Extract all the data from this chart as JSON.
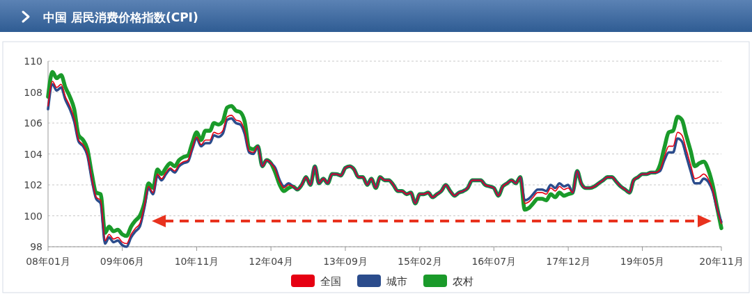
{
  "chart_data": {
    "type": "line",
    "title": "中国 居民消费价格指数(CPI)",
    "x": [
      "2008-01",
      "2008-02",
      "2008-03",
      "2008-04",
      "2008-05",
      "2008-06",
      "2008-07",
      "2008-08",
      "2008-09",
      "2008-10",
      "2008-11",
      "2008-12",
      "2009-01",
      "2009-02",
      "2009-03",
      "2009-04",
      "2009-05",
      "2009-06",
      "2009-07",
      "2009-08",
      "2009-09",
      "2009-10",
      "2009-11",
      "2009-12",
      "2010-01",
      "2010-02",
      "2010-03",
      "2010-04",
      "2010-05",
      "2010-06",
      "2010-07",
      "2010-08",
      "2010-09",
      "2010-10",
      "2010-11",
      "2010-12",
      "2011-01",
      "2011-02",
      "2011-03",
      "2011-04",
      "2011-05",
      "2011-06",
      "2011-07",
      "2011-08",
      "2011-09",
      "2011-10",
      "2011-11",
      "2011-12",
      "2012-01",
      "2012-02",
      "2012-03",
      "2012-04",
      "2012-05",
      "2012-06",
      "2012-07",
      "2012-08",
      "2012-09",
      "2012-10",
      "2012-11",
      "2012-12",
      "2013-01",
      "2013-02",
      "2013-03",
      "2013-04",
      "2013-05",
      "2013-06",
      "2013-07",
      "2013-08",
      "2013-09",
      "2013-10",
      "2013-11",
      "2013-12",
      "2014-01",
      "2014-02",
      "2014-03",
      "2014-04",
      "2014-05",
      "2014-06",
      "2014-07",
      "2014-08",
      "2014-09",
      "2014-10",
      "2014-11",
      "2014-12",
      "2015-01",
      "2015-02",
      "2015-03",
      "2015-04",
      "2015-05",
      "2015-06",
      "2015-07",
      "2015-08",
      "2015-09",
      "2015-10",
      "2015-11",
      "2015-12",
      "2016-01",
      "2016-02",
      "2016-03",
      "2016-04",
      "2016-05",
      "2016-06",
      "2016-07",
      "2016-08",
      "2016-09",
      "2016-10",
      "2016-11",
      "2016-12",
      "2017-01",
      "2017-02",
      "2017-03",
      "2017-04",
      "2017-05",
      "2017-06",
      "2017-07",
      "2017-08",
      "2017-09",
      "2017-10",
      "2017-11",
      "2017-12",
      "2018-01",
      "2018-02",
      "2018-03",
      "2018-04",
      "2018-05",
      "2018-06",
      "2018-07",
      "2018-08",
      "2018-09",
      "2018-10",
      "2018-11",
      "2018-12",
      "2019-01",
      "2019-02",
      "2019-03",
      "2019-04",
      "2019-05",
      "2019-06",
      "2019-07",
      "2019-08",
      "2019-09",
      "2019-10",
      "2019-11",
      "2019-12",
      "2020-01",
      "2020-02",
      "2020-03",
      "2020-04",
      "2020-05",
      "2020-06",
      "2020-07",
      "2020-08",
      "2020-09",
      "2020-10",
      "2020-11"
    ],
    "series": [
      {
        "name": "全国",
        "color": "#e60012",
        "values": [
          107.1,
          108.7,
          108.3,
          108.5,
          107.7,
          107.1,
          106.3,
          104.9,
          104.6,
          104.0,
          102.4,
          101.2,
          101.0,
          98.4,
          98.8,
          98.5,
          98.6,
          98.3,
          98.2,
          98.8,
          99.2,
          99.5,
          100.6,
          101.9,
          101.5,
          102.7,
          102.4,
          102.8,
          103.1,
          102.9,
          103.3,
          103.5,
          103.6,
          104.4,
          105.1,
          104.6,
          104.9,
          104.9,
          105.4,
          105.3,
          105.5,
          106.4,
          106.5,
          106.2,
          106.1,
          105.5,
          104.2,
          104.1,
          104.5,
          103.2,
          103.6,
          103.4,
          103.0,
          102.2,
          101.8,
          102.0,
          101.9,
          101.7,
          102.0,
          102.5,
          102.0,
          103.2,
          102.1,
          102.4,
          102.1,
          102.7,
          102.7,
          102.6,
          103.1,
          103.2,
          103.0,
          102.5,
          102.5,
          102.0,
          102.4,
          101.8,
          102.5,
          102.3,
          102.3,
          102.0,
          101.6,
          101.6,
          101.4,
          101.5,
          100.8,
          101.4,
          101.4,
          101.5,
          101.2,
          101.4,
          101.6,
          102.0,
          101.6,
          101.3,
          101.5,
          101.6,
          101.8,
          102.3,
          102.3,
          102.3,
          102.0,
          101.9,
          101.8,
          101.3,
          101.9,
          102.1,
          102.3,
          102.1,
          102.5,
          100.8,
          100.9,
          101.2,
          101.5,
          101.5,
          101.4,
          101.8,
          101.6,
          101.9,
          101.7,
          101.8,
          101.5,
          102.9,
          102.1,
          101.8,
          101.8,
          101.9,
          102.1,
          102.3,
          102.5,
          102.5,
          102.2,
          101.9,
          101.7,
          101.5,
          102.3,
          102.5,
          102.7,
          102.7,
          102.8,
          102.8,
          103.0,
          103.8,
          104.5,
          104.5,
          105.4,
          105.2,
          104.3,
          103.3,
          102.4,
          102.5,
          102.7,
          102.4,
          101.7,
          100.5,
          99.5
        ]
      },
      {
        "name": "城市",
        "color": "#2b4c8c",
        "values": [
          106.9,
          108.5,
          108.1,
          108.3,
          107.5,
          106.9,
          106.1,
          104.8,
          104.5,
          103.9,
          102.3,
          101.1,
          100.8,
          98.2,
          98.6,
          98.3,
          98.4,
          98.1,
          98.0,
          98.6,
          99.0,
          99.3,
          100.5,
          101.8,
          101.4,
          102.6,
          102.3,
          102.7,
          103.0,
          102.8,
          103.2,
          103.4,
          103.5,
          104.3,
          105.0,
          104.5,
          104.7,
          104.7,
          105.2,
          105.1,
          105.3,
          106.2,
          106.3,
          106.0,
          105.9,
          105.3,
          104.1,
          104.0,
          104.5,
          103.2,
          103.6,
          103.4,
          103.1,
          102.3,
          101.9,
          102.1,
          101.9,
          101.7,
          102.0,
          102.5,
          102.0,
          103.2,
          102.1,
          102.4,
          102.1,
          102.7,
          102.7,
          102.6,
          103.1,
          103.2,
          103.0,
          102.5,
          102.5,
          102.0,
          102.4,
          101.8,
          102.5,
          102.3,
          102.3,
          102.0,
          101.6,
          101.6,
          101.4,
          101.5,
          100.8,
          101.4,
          101.4,
          101.5,
          101.2,
          101.4,
          101.6,
          102.0,
          101.6,
          101.3,
          101.5,
          101.6,
          101.8,
          102.3,
          102.3,
          102.3,
          102.0,
          101.9,
          101.8,
          101.3,
          101.9,
          102.1,
          102.3,
          102.1,
          102.5,
          101.0,
          101.1,
          101.4,
          101.7,
          101.7,
          101.6,
          102.0,
          101.8,
          102.1,
          101.9,
          102.0,
          101.5,
          102.9,
          102.1,
          101.8,
          101.8,
          101.9,
          102.1,
          102.3,
          102.5,
          102.5,
          102.2,
          101.9,
          101.7,
          101.5,
          102.3,
          102.5,
          102.7,
          102.7,
          102.8,
          102.8,
          102.9,
          103.6,
          104.1,
          104.1,
          105.0,
          104.8,
          103.9,
          102.9,
          102.1,
          102.1,
          102.4,
          102.2,
          101.6,
          100.5,
          99.6
        ]
      },
      {
        "name": "农村",
        "color": "#1a9a2a",
        "values": [
          107.7,
          109.3,
          108.9,
          109.1,
          108.3,
          107.7,
          106.9,
          105.2,
          104.9,
          104.3,
          102.7,
          101.5,
          101.4,
          98.9,
          99.3,
          99.0,
          99.1,
          98.8,
          98.7,
          99.3,
          99.7,
          100.0,
          100.8,
          102.1,
          101.8,
          103.0,
          102.7,
          103.1,
          103.4,
          103.2,
          103.6,
          103.8,
          103.9,
          104.7,
          105.4,
          104.9,
          105.5,
          105.5,
          106.0,
          105.9,
          106.1,
          107.0,
          107.1,
          106.8,
          106.7,
          106.1,
          104.4,
          104.3,
          104.5,
          103.2,
          103.6,
          103.4,
          102.8,
          102.0,
          101.6,
          101.8,
          101.9,
          101.7,
          102.0,
          102.5,
          102.0,
          103.2,
          102.1,
          102.4,
          102.1,
          102.7,
          102.7,
          102.6,
          103.1,
          103.2,
          103.0,
          102.5,
          102.5,
          102.0,
          102.4,
          101.8,
          102.5,
          102.3,
          102.3,
          102.0,
          101.6,
          101.6,
          101.4,
          101.5,
          100.8,
          101.4,
          101.4,
          101.5,
          101.2,
          101.4,
          101.6,
          102.0,
          101.6,
          101.3,
          101.5,
          101.6,
          101.8,
          102.3,
          102.3,
          102.3,
          102.0,
          101.9,
          101.8,
          101.3,
          101.9,
          102.1,
          102.3,
          102.1,
          102.5,
          100.4,
          100.5,
          100.8,
          101.1,
          101.1,
          101.0,
          101.4,
          101.2,
          101.5,
          101.3,
          101.4,
          101.5,
          102.9,
          102.1,
          101.8,
          101.8,
          101.9,
          102.1,
          102.3,
          102.5,
          102.5,
          102.2,
          101.9,
          101.7,
          101.5,
          102.3,
          102.5,
          102.7,
          102.7,
          102.8,
          102.8,
          103.3,
          104.4,
          105.4,
          105.5,
          106.4,
          106.2,
          105.2,
          104.2,
          103.2,
          103.4,
          103.5,
          103.0,
          102.0,
          100.6,
          99.2
        ]
      }
    ],
    "xlim": [
      "2008-01",
      "2020-11"
    ],
    "xticks": [
      {
        "value": "2008-01",
        "label": "08年01月"
      },
      {
        "value": "2009-06",
        "label": "09年06月"
      },
      {
        "value": "2010-11",
        "label": "10年11月"
      },
      {
        "value": "2012-04",
        "label": "12年04月"
      },
      {
        "value": "2013-09",
        "label": "13年09月"
      },
      {
        "value": "2015-02",
        "label": "15年02月"
      },
      {
        "value": "2016-07",
        "label": "16年07月"
      },
      {
        "value": "2017-12",
        "label": "17年12月"
      },
      {
        "value": "2019-05",
        "label": "19年05月"
      },
      {
        "value": "2020-11",
        "label": "20年11月"
      }
    ],
    "ylim": [
      98,
      110
    ],
    "yticks": [
      98,
      100,
      102,
      104,
      106,
      108,
      110
    ],
    "grid": "y",
    "legend": "bottom",
    "marker": "none",
    "line_style": "solid"
  }
}
